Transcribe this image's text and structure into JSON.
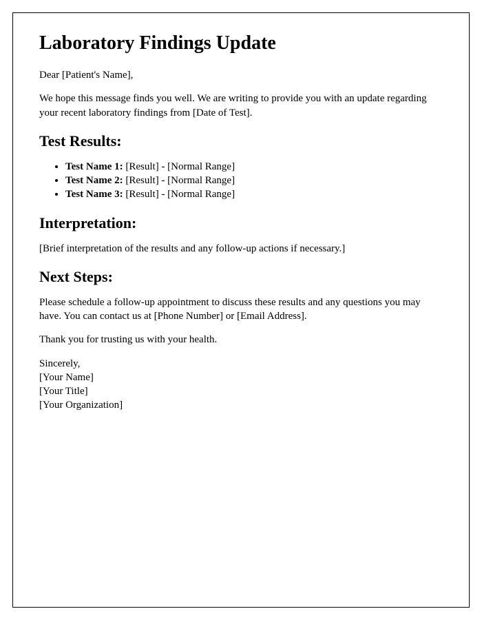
{
  "title": "Laboratory Findings Update",
  "greeting": "Dear [Patient's Name],",
  "intro": "We hope this message finds you well. We are writing to provide you with an update regarding your recent laboratory findings from [Date of Test].",
  "results_heading": "Test Results:",
  "results": [
    {
      "label": "Test Name 1:",
      "value": " [Result] - [Normal Range]"
    },
    {
      "label": "Test Name 2:",
      "value": " [Result] - [Normal Range]"
    },
    {
      "label": "Test Name 3:",
      "value": " [Result] - [Normal Range]"
    }
  ],
  "interpretation_heading": "Interpretation:",
  "interpretation_body": "[Brief interpretation of the results and any follow-up actions if necessary.]",
  "next_steps_heading": "Next Steps:",
  "next_steps_body": "Please schedule a follow-up appointment to discuss these results and any questions you may have. You can contact us at [Phone Number] or [Email Address].",
  "thanks": "Thank you for trusting us with your health.",
  "closing": "Sincerely,",
  "sig_name": "[Your Name]",
  "sig_title": "[Your Title]",
  "sig_org": "[Your Organization]"
}
